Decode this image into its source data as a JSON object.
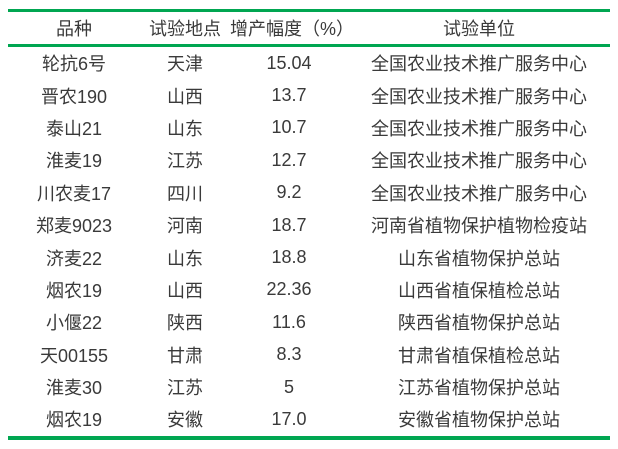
{
  "colors": {
    "accent_green": "#00A651",
    "text": "#3A3A3A",
    "background": "#FFFFFF"
  },
  "table": {
    "headers": {
      "variety": "品种",
      "location": "试验地点",
      "increase": "增产幅度（%）",
      "unit": "试验单位"
    },
    "rows": [
      {
        "variety": "轮抗6号",
        "location": "天津",
        "increase": "15.04",
        "unit": "全国农业技术推广服务中心"
      },
      {
        "variety": "晋农190",
        "location": "山西",
        "increase": "13.7",
        "unit": "全国农业技术推广服务中心"
      },
      {
        "variety": "泰山21",
        "location": "山东",
        "increase": "10.7",
        "unit": "全国农业技术推广服务中心"
      },
      {
        "variety": "淮麦19",
        "location": "江苏",
        "increase": "12.7",
        "unit": "全国农业技术推广服务中心"
      },
      {
        "variety": "川农麦17",
        "location": "四川",
        "increase": "9.2",
        "unit": "全国农业技术推广服务中心"
      },
      {
        "variety": "郑麦9023",
        "location": "河南",
        "increase": "18.7",
        "unit": "河南省植物保护植物检疫站"
      },
      {
        "variety": "济麦22",
        "location": "山东",
        "increase": "18.8",
        "unit": "山东省植物保护总站"
      },
      {
        "variety": "烟农19",
        "location": "山西",
        "increase": "22.36",
        "unit": "山西省植保植检总站"
      },
      {
        "variety": "小偃22",
        "location": "陕西",
        "increase": "11.6",
        "unit": "陕西省植物保护总站"
      },
      {
        "variety": "天00155",
        "location": "甘肃",
        "increase": "8.3",
        "unit": "甘肃省植保植检总站"
      },
      {
        "variety": "淮麦30",
        "location": "江苏",
        "increase": "5",
        "unit": "江苏省植物保护总站"
      },
      {
        "variety": "烟农19",
        "location": "安徽",
        "increase": "17.0",
        "unit": "安徽省植物保护总站"
      }
    ]
  }
}
